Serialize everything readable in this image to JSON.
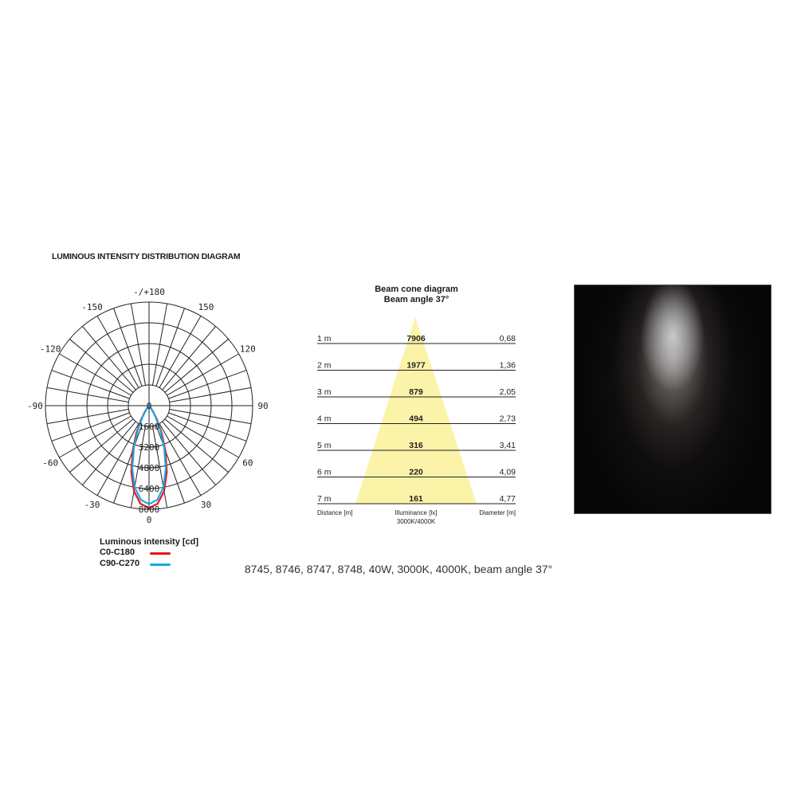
{
  "title": "LUMINOUS INTENSITY DISTRIBUTION DIAGRAM",
  "caption": "8745, 8746, 8747, 8748, 40W, 3000K, 4000K, beam angle 37°",
  "colors": {
    "c0_c180": "#e8141c",
    "c90_c270": "#18a8e6",
    "cone": "#fbf3a8",
    "photo_bg": "#080707"
  },
  "chart_data": [
    {
      "type": "polar",
      "title": "",
      "angle_labels": [
        "-/+180",
        "-150",
        "150",
        "-120",
        "120",
        "-90",
        "90",
        "-60",
        "60",
        "-30",
        "30",
        "0"
      ],
      "radial_ticks": [
        0,
        1600,
        3200,
        4800,
        6400,
        8000
      ],
      "rlim": [
        0,
        8000
      ],
      "grid": true,
      "legend": {
        "title": "Luminous intensity [cd]",
        "placement": "bottom-left"
      },
      "angles_deg": [
        0,
        5,
        10,
        15,
        20,
        25,
        30,
        35,
        40,
        45
      ],
      "series": [
        {
          "name": "C0-C180",
          "color": "#e8141c",
          "values": [
            7906,
            7600,
            6700,
            5300,
            3700,
            2300,
            1200,
            500,
            150,
            0
          ]
        },
        {
          "name": "C90-C270",
          "color": "#18a8e6",
          "values": [
            7600,
            7300,
            6400,
            5000,
            3400,
            2000,
            1000,
            400,
            100,
            0
          ]
        }
      ]
    },
    {
      "type": "table",
      "title": "Beam cone diagram",
      "subtitle": "Beam angle 37°",
      "columns": [
        "Distance [m]",
        "Illuminance [lx]",
        "Diameter [m]"
      ],
      "column_note": "3000K/4000K",
      "rows": [
        [
          "1 m",
          "7906",
          "0,68"
        ],
        [
          "2 m",
          "1977",
          "1,36"
        ],
        [
          "3 m",
          "879",
          "2,05"
        ],
        [
          "4 m",
          "494",
          "2,73"
        ],
        [
          "5 m",
          "316",
          "3,41"
        ],
        [
          "6 m",
          "220",
          "4,09"
        ],
        [
          "7 m",
          "161",
          "4,77"
        ]
      ]
    }
  ]
}
